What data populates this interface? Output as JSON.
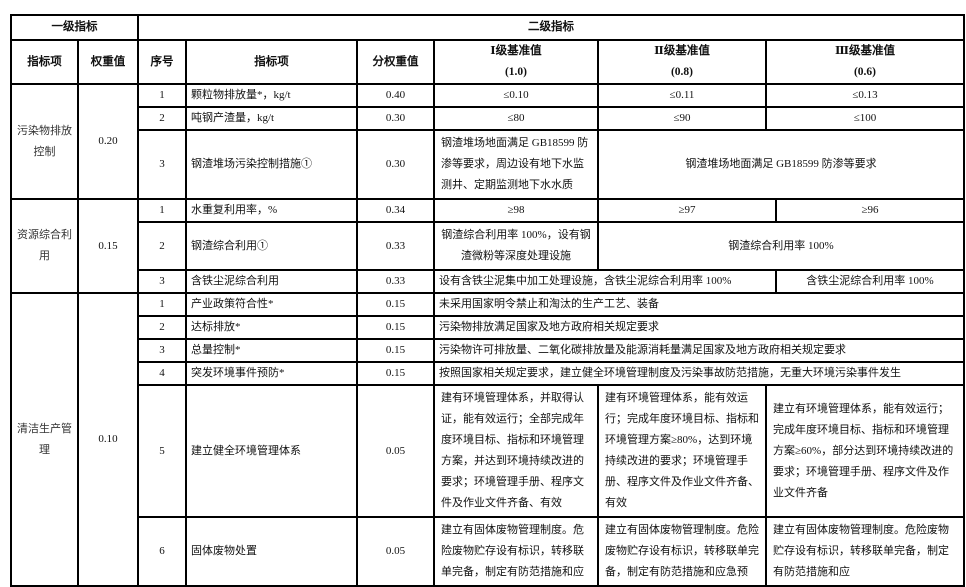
{
  "header": {
    "level1": "一级指标",
    "level2": "二级指标",
    "col_item": "指标项",
    "col_weight": "权重值",
    "col_no": "序号",
    "col_sub_item": "指标项",
    "col_sub_weight": "分权重值",
    "grade1": "Ⅰ级基准值",
    "grade1_val": "(1.0)",
    "grade2": "Ⅱ级基准值",
    "grade2_val": "(0.8)",
    "grade3": "Ⅲ级基准值",
    "grade3_val": "(0.6)"
  },
  "groups": [
    {
      "name": "污染物排放控制",
      "weight": "0.20",
      "rows": [
        {
          "no": "1",
          "item": "颗粒物排放量*，kg/t",
          "w": "0.40",
          "g1": "≤0.10",
          "g2": "≤0.11",
          "g3": "≤0.13"
        },
        {
          "no": "2",
          "item": "吨钢产渣量，kg/t",
          "w": "0.30",
          "g1": "≤80",
          "g2": "≤90",
          "g3": "≤100"
        },
        {
          "no": "3",
          "item": "钢渣堆场污染控制措施①",
          "w": "0.30",
          "g1": "钢渣堆场地面满足 GB18599 防渗等要求，周边设有地下水监测井、定期监测地下水水质",
          "g23": "钢渣堆场地面满足 GB18599 防渗等要求"
        }
      ]
    },
    {
      "name": "资源综合利用",
      "weight": "0.15",
      "rows": [
        {
          "no": "1",
          "item": "水重复利用率，%",
          "w": "0.34",
          "g1": "≥98",
          "g2": "≥97",
          "g3": "≥96"
        },
        {
          "no": "2",
          "item": "钢渣综合利用①",
          "w": "0.33",
          "g1": "钢渣综合利用率 100%，设有钢渣微粉等深度处理设施",
          "g23": "钢渣综合利用率 100%"
        },
        {
          "no": "3",
          "item": "含铁尘泥综合利用",
          "w": "0.33",
          "g12": "设有含铁尘泥集中加工处理设施，含铁尘泥综合利用率 100%",
          "g3": "含铁尘泥综合利用率 100%"
        }
      ]
    },
    {
      "name": "清洁生产管理",
      "weight": "0.10",
      "rows": [
        {
          "no": "1",
          "item": "产业政策符合性*",
          "w": "0.15",
          "all": "未采用国家明令禁止和淘汰的生产工艺、装备"
        },
        {
          "no": "2",
          "item": "达标排放*",
          "w": "0.15",
          "all": "污染物排放满足国家及地方政府相关规定要求"
        },
        {
          "no": "3",
          "item": "总量控制*",
          "w": "0.15",
          "all": "污染物许可排放量、二氧化碳排放量及能源消耗量满足国家及地方政府相关规定要求"
        },
        {
          "no": "4",
          "item": "突发环境事件预防*",
          "w": "0.15",
          "all": "按照国家相关规定要求，建立健全环境管理制度及污染事故防范措施，无重大环境污染事件发生"
        },
        {
          "no": "5",
          "item": "建立健全环境管理体系",
          "w": "0.05",
          "g1": "建有环境管理体系，并取得认证，能有效运行；全部完成年度环境目标、指标和环境管理方案，并达到环境持续改进的要求；环境管理手册、程序文件及作业文件齐备、有效",
          "g2": "建有环境管理体系，能有效运行；完成年度环境目标、指标和环境管理方案≥80%，达到环境持续改进的要求；环境管理手册、程序文件及作业文件齐备、有效",
          "g3": "建立有环境管理体系，能有效运行；完成年度环境目标、指标和环境管理方案≥60%，部分达到环境持续改进的要求；环境管理手册、程序文件及作业文件齐备"
        },
        {
          "no": "6",
          "item": "固体废物处置",
          "w": "0.05",
          "g1": "建立有固体废物管理制度。危险废物贮存设有标识，转移联单完备，制定有防范措施和应",
          "g2": "建立有固体废物管理制度。危险废物贮存设有标识，转移联单完备，制定有防范措施和应急预",
          "g3": "建立有固体废物管理制度。危险废物贮存设有标识，转移联单完备，制定有防范措施和应"
        }
      ]
    }
  ]
}
